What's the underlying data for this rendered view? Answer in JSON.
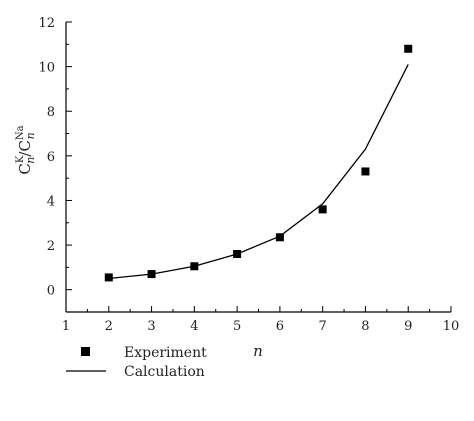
{
  "chart_data": {
    "type": "scatter",
    "xlabel": "n",
    "ylabel": {
      "base": "C",
      "numerator_sub": "n",
      "numerator_sup": "K",
      "separator": "/",
      "denominator_sub": "n",
      "denominator_sup": "Na"
    },
    "xlim": [
      1,
      10
    ],
    "ylim": [
      -1,
      12
    ],
    "x_ticks": [
      "1",
      "2",
      "3",
      "4",
      "5",
      "6",
      "7",
      "8",
      "9",
      "10"
    ],
    "y_ticks": [
      "0",
      "2",
      "4",
      "6",
      "8",
      "10",
      "12"
    ],
    "grid": false,
    "legend_position": "bottom-left",
    "series": [
      {
        "name": "Experiment",
        "kind": "markers",
        "marker": "square",
        "color": "#000000",
        "x": [
          2,
          3,
          4,
          5,
          6,
          7,
          8,
          9
        ],
        "y": [
          0.55,
          0.7,
          1.05,
          1.6,
          2.35,
          3.6,
          5.3,
          10.8
        ]
      },
      {
        "name": "Calculation",
        "kind": "line",
        "color": "#000000",
        "x": [
          2,
          3,
          4,
          5,
          6,
          7,
          8,
          9
        ],
        "y": [
          0.5,
          0.7,
          1.05,
          1.6,
          2.4,
          3.85,
          6.3,
          10.1
        ]
      }
    ]
  }
}
